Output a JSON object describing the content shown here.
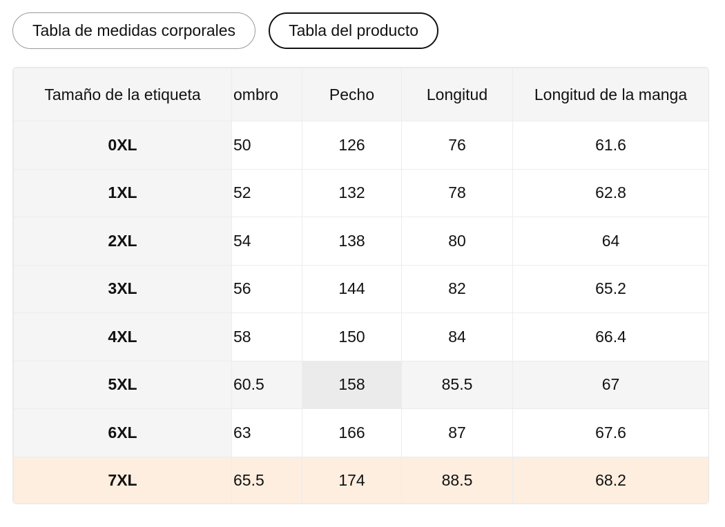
{
  "tabs": [
    "Tabla de medidas corporales",
    "Tabla del producto"
  ],
  "table": {
    "header": [
      "Tamaño de la etiqueta",
      "ombro",
      "Pecho",
      "Longitud",
      "Longitud de la manga"
    ],
    "rows": [
      [
        "0XL",
        "50",
        "126",
        "76",
        "61.6"
      ],
      [
        "1XL",
        "52",
        "132",
        "78",
        "62.8"
      ],
      [
        "2XL",
        "54",
        "138",
        "80",
        "64"
      ],
      [
        "3XL",
        "56",
        "144",
        "82",
        "65.2"
      ],
      [
        "4XL",
        "58",
        "150",
        "84",
        "66.4"
      ],
      [
        "5XL",
        "60.5",
        "158",
        "85.5",
        "67"
      ],
      [
        "6XL",
        "63",
        "166",
        "87",
        "67.6"
      ],
      [
        "7XL",
        "65.5",
        "174",
        "88.5",
        "68.2"
      ]
    ]
  }
}
